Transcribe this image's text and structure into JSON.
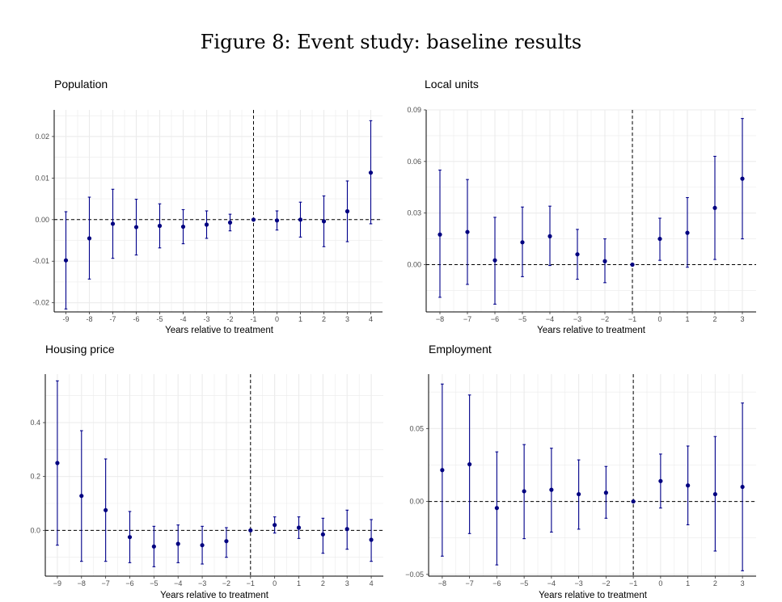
{
  "figure_title": "Figure 8: Event study: baseline results",
  "colors": {
    "point": "#000080",
    "errorbar": "#00008B",
    "grid": "#ebebeb",
    "axis": "#000000"
  },
  "chart_data": [
    {
      "type": "scatter",
      "title": "Population",
      "xlabel": "Years relative to treatment",
      "ylabel": "",
      "xlim": [
        -9.5,
        4.5
      ],
      "ylim": [
        -0.0222,
        0.0264
      ],
      "xticks": [
        -9,
        -8,
        -7,
        -6,
        -5,
        -4,
        -3,
        -2,
        -1,
        0,
        1,
        2,
        3,
        4
      ],
      "xtick_labels": [
        "-9",
        "-8",
        "-7",
        "-6",
        "-5",
        "-4",
        "-3",
        "-2",
        "-1",
        "0",
        "1",
        "2",
        "3",
        "4"
      ],
      "yticks": [
        -0.02,
        -0.01,
        0.0,
        0.01,
        0.02
      ],
      "ytick_labels": [
        "-0.02",
        "-0.01",
        "0.00",
        "0.01",
        "0.02"
      ],
      "hline": 0,
      "vline": -1,
      "x": [
        -9,
        -8,
        -7,
        -6,
        -5,
        -4,
        -3,
        -2,
        -1,
        0,
        1,
        2,
        3,
        4
      ],
      "y": [
        -0.0098,
        -0.0045,
        -0.001,
        -0.0018,
        -0.0015,
        -0.0017,
        -0.0012,
        -0.0007,
        0.0,
        -0.0002,
        0.0,
        -0.0004,
        0.002,
        0.0113
      ],
      "lower": [
        -0.0215,
        -0.0143,
        -0.0093,
        -0.0085,
        -0.0068,
        -0.0058,
        -0.0045,
        -0.0027,
        0.0,
        -0.0025,
        -0.0042,
        -0.0065,
        -0.0053,
        -0.001
      ],
      "upper": [
        0.0019,
        0.0054,
        0.0073,
        0.0049,
        0.0038,
        0.0024,
        0.0021,
        0.0013,
        0.0,
        0.0021,
        0.0042,
        0.0057,
        0.0093,
        0.0238
      ]
    },
    {
      "type": "scatter",
      "title": "Local units",
      "xlabel": "Years relative to treatment",
      "ylabel": "",
      "xlim": [
        -8.5,
        3.5
      ],
      "ylim": [
        -0.0275,
        0.09
      ],
      "xticks": [
        -8,
        -7,
        -6,
        -5,
        -4,
        -3,
        -2,
        -1,
        0,
        1,
        2,
        3
      ],
      "xtick_labels": [
        "−8",
        "−7",
        "−6",
        "−5",
        "−4",
        "−3",
        "−2",
        "−1",
        "0",
        "1",
        "2",
        "3"
      ],
      "yticks": [
        0.0,
        0.03,
        0.06,
        0.09
      ],
      "ytick_labels": [
        "0.00",
        "0.03",
        "0.06",
        "0.09"
      ],
      "hline": 0,
      "vline": -1,
      "x": [
        -8,
        -7,
        -6,
        -5,
        -4,
        -3,
        -2,
        -1,
        0,
        1,
        2,
        3
      ],
      "y": [
        0.0175,
        0.019,
        0.0025,
        0.013,
        0.0165,
        0.006,
        0.002,
        0.0,
        0.015,
        0.0185,
        0.033,
        0.05
      ],
      "lower": [
        -0.019,
        -0.0115,
        -0.023,
        -0.007,
        -0.0005,
        -0.0085,
        -0.0105,
        0.0,
        0.0025,
        -0.0015,
        0.003,
        0.015
      ],
      "upper": [
        0.055,
        0.0495,
        0.0275,
        0.0335,
        0.034,
        0.0205,
        0.015,
        0.0,
        0.027,
        0.039,
        0.063,
        0.085
      ]
    },
    {
      "type": "scatter",
      "title": "Housing price",
      "xlabel": "Years relative to treatment",
      "ylabel": "",
      "xlim": [
        -9.5,
        4.5
      ],
      "ylim": [
        -0.17,
        0.58
      ],
      "xticks": [
        -9,
        -8,
        -7,
        -6,
        -5,
        -4,
        -3,
        -2,
        -1,
        0,
        1,
        2,
        3,
        4
      ],
      "xtick_labels": [
        "−9",
        "−8",
        "−7",
        "−6",
        "−5",
        "−4",
        "−3",
        "−2",
        "−1",
        "0",
        "1",
        "2",
        "3",
        "4"
      ],
      "yticks": [
        0.0,
        0.2,
        0.4
      ],
      "ytick_labels": [
        "0.0",
        "0.2",
        "0.4"
      ],
      "hline": 0,
      "vline": -1,
      "x": [
        -9,
        -8,
        -7,
        -6,
        -5,
        -4,
        -3,
        -2,
        -1,
        0,
        1,
        2,
        3,
        4
      ],
      "y": [
        0.25,
        0.128,
        0.075,
        -0.025,
        -0.06,
        -0.05,
        -0.055,
        -0.04,
        0.0,
        0.02,
        0.01,
        -0.015,
        0.005,
        -0.035
      ],
      "lower": [
        -0.055,
        -0.115,
        -0.115,
        -0.12,
        -0.135,
        -0.12,
        -0.125,
        -0.1,
        0.0,
        -0.01,
        -0.03,
        -0.085,
        -0.07,
        -0.115
      ],
      "upper": [
        0.555,
        0.37,
        0.265,
        0.07,
        0.015,
        0.02,
        0.015,
        0.01,
        0.0,
        0.05,
        0.05,
        0.045,
        0.075,
        0.04
      ]
    },
    {
      "type": "scatter",
      "title": "Employment",
      "xlabel": "Years relative to treatment",
      "ylabel": "",
      "xlim": [
        -8.5,
        3.5
      ],
      "ylim": [
        -0.0512,
        0.0873
      ],
      "xticks": [
        -8,
        -7,
        -6,
        -5,
        -4,
        -3,
        -2,
        -1,
        0,
        1,
        2,
        3
      ],
      "xtick_labels": [
        "−8",
        "−7",
        "−6",
        "−5",
        "−4",
        "−3",
        "−2",
        "−1",
        "0",
        "1",
        "2",
        "3"
      ],
      "yticks": [
        -0.05,
        0.0,
        0.05
      ],
      "ytick_labels": [
        "−0.05",
        "0.00",
        "0.05"
      ],
      "hline": 0,
      "vline": -1,
      "x": [
        -8,
        -7,
        -6,
        -5,
        -4,
        -3,
        -2,
        -1,
        0,
        1,
        2,
        3
      ],
      "y": [
        0.0215,
        0.0255,
        -0.0045,
        0.007,
        0.008,
        0.005,
        0.006,
        0.0,
        0.014,
        0.011,
        0.005,
        0.01
      ],
      "lower": [
        -0.0375,
        -0.022,
        -0.0435,
        -0.0255,
        -0.021,
        -0.019,
        -0.0115,
        0.0,
        -0.0045,
        -0.016,
        -0.034,
        -0.0475
      ],
      "upper": [
        0.0805,
        0.073,
        0.034,
        0.039,
        0.0365,
        0.0285,
        0.024,
        0.0,
        0.0325,
        0.038,
        0.0445,
        0.0675
      ]
    }
  ]
}
